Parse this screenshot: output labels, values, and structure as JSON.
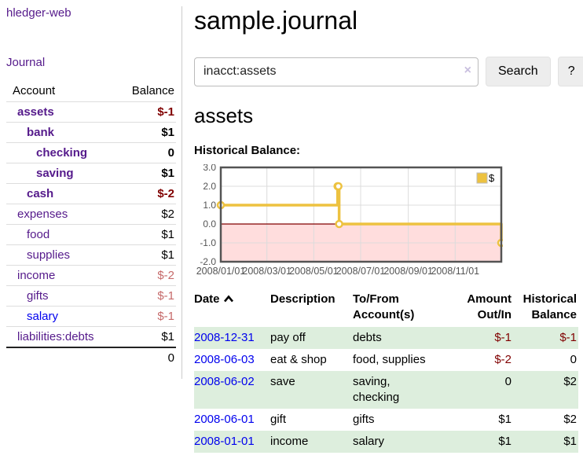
{
  "colors": {
    "link_purple": "#551a8b",
    "link_blue": "#0000ee",
    "negative_strong": "#800000",
    "negative_soft": "#c66a6a",
    "row_stripe_green": "#ddeedd",
    "chart_line_gold": "#edc240",
    "chart_negative_fill": "#ffdddd",
    "chart_zero_line": "#800000"
  },
  "app": {
    "title": "hledger-web",
    "nav_journal": "Journal"
  },
  "sidebar": {
    "columns": {
      "account": "Account",
      "balance": "Balance"
    },
    "accounts": [
      {
        "name": "assets",
        "depth": 1,
        "balance": "$-1"
      },
      {
        "name": "bank",
        "depth": 2,
        "balance": "$1"
      },
      {
        "name": "checking",
        "depth": 3,
        "balance": "0"
      },
      {
        "name": "saving",
        "depth": 3,
        "balance": "$1"
      },
      {
        "name": "cash",
        "depth": 2,
        "balance": "$-2"
      },
      {
        "name": "expenses",
        "depth": 1,
        "balance": "$2"
      },
      {
        "name": "food",
        "depth": 2,
        "balance": "$1"
      },
      {
        "name": "supplies",
        "depth": 2,
        "balance": "$1"
      },
      {
        "name": "income",
        "depth": 1,
        "balance": "$-2"
      },
      {
        "name": "gifts",
        "depth": 2,
        "balance": "$-1"
      },
      {
        "name": "salary",
        "depth": 2,
        "balance": "$-1"
      },
      {
        "name": "liabilities:debts",
        "depth": 1,
        "balance": "$1"
      }
    ],
    "total": "0"
  },
  "header": {
    "title": "sample.journal"
  },
  "search": {
    "value": "inacct:assets",
    "clear_icon": "×",
    "button_label": "Search",
    "help_label": "?"
  },
  "account_page": {
    "heading": "assets",
    "chart_title": "Historical Balance:"
  },
  "chart_data": {
    "type": "line",
    "title": "Historical Balance",
    "step": true,
    "legend": {
      "label": "$",
      "position": "top-right"
    },
    "x": [
      "2008-01-01",
      "2008-06-01",
      "2008-06-02",
      "2008-06-03",
      "2008-12-31"
    ],
    "series": [
      {
        "name": "$",
        "values": [
          1,
          2,
          2,
          0,
          -1
        ]
      }
    ],
    "x_ticks": [
      "2008/01/01",
      "2008/03/01",
      "2008/05/01",
      "2008/07/01",
      "2008/09/01",
      "2008/11/01"
    ],
    "y_ticks": [
      "3.0",
      "2.0",
      "1.0",
      "0.0",
      "-1.0",
      "-2.0"
    ],
    "xlim": [
      "2008-01-01",
      "2008-12-31"
    ],
    "ylim": [
      -2,
      3
    ],
    "grid": true,
    "negative_region_shaded": true
  },
  "register": {
    "columns": {
      "date": "Date",
      "description": "Description",
      "accounts": "To/From Account(s)",
      "amount": "Amount Out/In",
      "balance": "Historical Balance"
    },
    "sort": {
      "column": "Date",
      "direction": "ascending"
    },
    "rows": [
      {
        "date": "2008-12-31",
        "description": "pay off",
        "accounts": "debts",
        "amount": "$-1",
        "balance": "$-1"
      },
      {
        "date": "2008-06-03",
        "description": "eat & shop",
        "accounts": "food, supplies",
        "amount": "$-2",
        "balance": "0"
      },
      {
        "date": "2008-06-02",
        "description": "save",
        "accounts": "saving, checking",
        "amount": "0",
        "balance": "$2"
      },
      {
        "date": "2008-06-01",
        "description": "gift",
        "accounts": "gifts",
        "amount": "$1",
        "balance": "$2"
      },
      {
        "date": "2008-01-01",
        "description": "income",
        "accounts": "salary",
        "amount": "$1",
        "balance": "$1"
      }
    ]
  }
}
